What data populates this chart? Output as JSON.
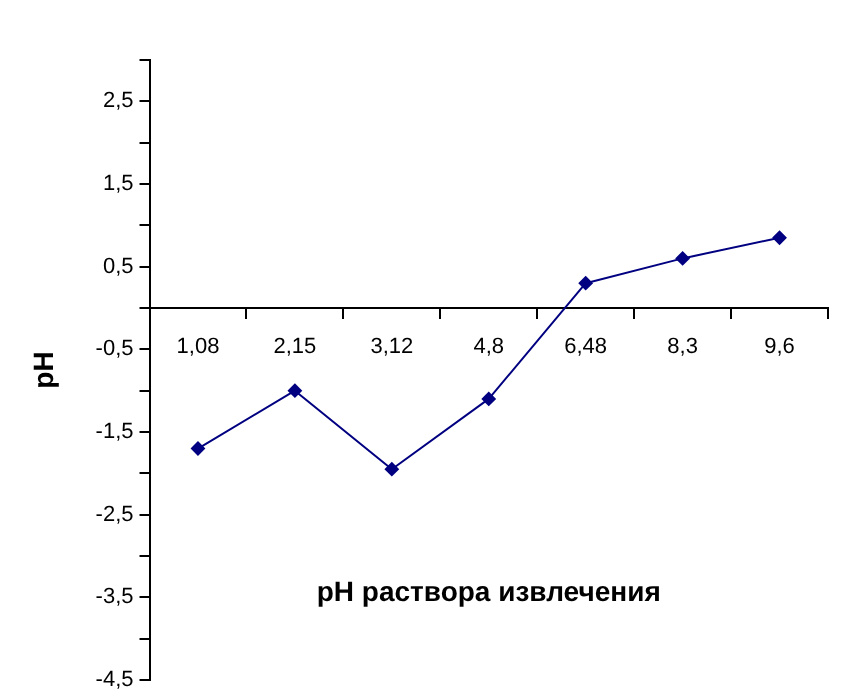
{
  "chart_data": {
    "type": "line",
    "xlabel": "pH раствора извлечения",
    "ylabel": "pH",
    "categories": [
      "1,08",
      "2,15",
      "3,12",
      "4,8",
      "6,48",
      "8,3",
      "9,6"
    ],
    "series": [
      {
        "color": "#000080",
        "values": [
          -1.7,
          -1.0,
          -1.95,
          -1.1,
          0.3,
          0.6,
          0.85
        ]
      }
    ],
    "ylim": [
      -4.5,
      3
    ],
    "yticks": [
      {
        "value": -4.5,
        "label": "-4,5"
      },
      {
        "value": -4,
        "label": null
      },
      {
        "value": -3.5,
        "label": "-3,5"
      },
      {
        "value": -3,
        "label": null
      },
      {
        "value": -2.5,
        "label": "-2,5"
      },
      {
        "value": -2,
        "label": null
      },
      {
        "value": -1.5,
        "label": "-1,5"
      },
      {
        "value": -1,
        "label": null
      },
      {
        "value": -0.5,
        "label": "-0,5"
      },
      {
        "value": 0,
        "label": null
      },
      {
        "value": 0.5,
        "label": "0,5"
      },
      {
        "value": 1,
        "label": null
      },
      {
        "value": 1.5,
        "label": "1,5"
      },
      {
        "value": 2,
        "label": null
      },
      {
        "value": 2.5,
        "label": "2,5"
      },
      {
        "value": 3,
        "label": null
      }
    ],
    "grid": false,
    "legend": false,
    "marker": "diamond",
    "line_style": "solid"
  }
}
